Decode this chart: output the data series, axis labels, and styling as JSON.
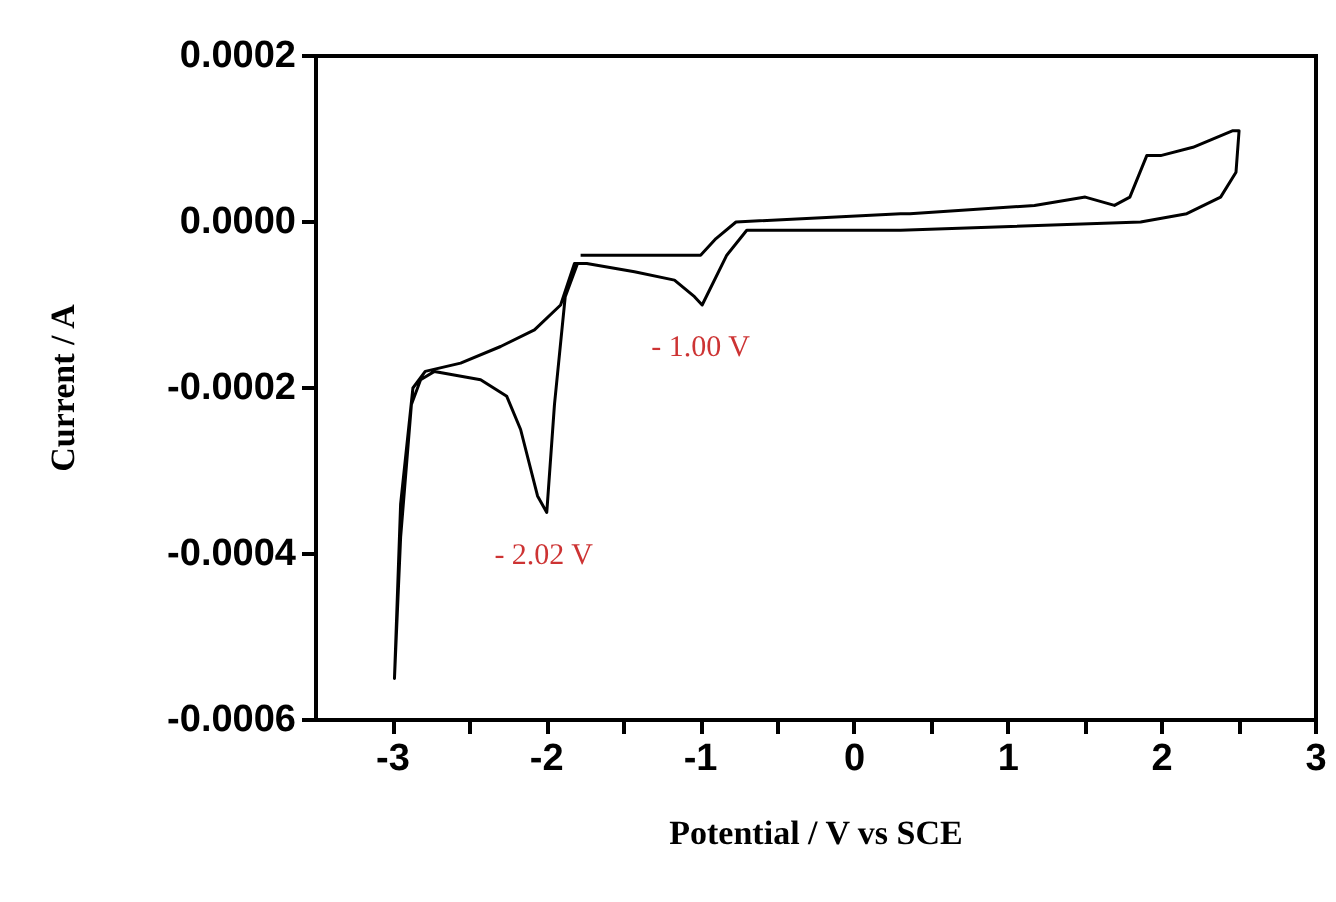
{
  "chart_data": {
    "type": "line",
    "xlabel": "Potential / V vs SCE",
    "ylabel": "Current / A",
    "series": [
      {
        "color": "#000000",
        "x": [
          -1.78,
          -1.0,
          -0.9,
          -0.77,
          0.3,
          0.36,
          1.17,
          1.5,
          1.69,
          1.79,
          1.9,
          1.99,
          2.2,
          2.46,
          2.5,
          2.48,
          2.38,
          2.16,
          1.86,
          0.3,
          -0.35,
          -0.7,
          -0.83,
          -0.99,
          -1.04,
          -1.17,
          -1.43,
          -1.74,
          -1.8,
          -1.88,
          -1.95,
          -2.0,
          -2.06,
          -2.17,
          -2.26,
          -2.43,
          -2.73,
          -2.82,
          -2.88,
          -2.95,
          -2.99,
          -2.95,
          -2.87,
          -2.79,
          -2.56,
          -2.3,
          -2.08,
          -1.91,
          -1.82,
          -1.78
        ],
        "values": [
          -4e-05,
          -4e-05,
          -2e-05,
          0,
          1e-05,
          1e-05,
          2e-05,
          3e-05,
          2e-05,
          3e-05,
          8e-05,
          8e-05,
          9e-05,
          0.00011,
          0.00011,
          6e-05,
          3e-05,
          1e-05,
          0,
          -1e-05,
          -1e-05,
          -1e-05,
          -4e-05,
          -0.0001,
          -9e-05,
          -7e-05,
          -6e-05,
          -5e-05,
          -5e-05,
          -9e-05,
          -0.00022,
          -0.00035,
          -0.00033,
          -0.00025,
          -0.00021,
          -0.00019,
          -0.00018,
          -0.00019,
          -0.00022,
          -0.00038,
          -0.00055,
          -0.00034,
          -0.0002,
          -0.00018,
          -0.00017,
          -0.00015,
          -0.00013,
          -0.0001,
          -5e-05,
          -5e-05
        ]
      }
    ],
    "xlim": [
      -3.5,
      3
    ],
    "xticks": [
      -3,
      {
        "value": -2.5,
        "label": null
      },
      -2,
      {
        "value": -1.5,
        "label": null
      },
      -1,
      {
        "value": -0.5,
        "label": null
      },
      0,
      {
        "value": 0.5,
        "label": null
      },
      1,
      {
        "value": 1.5,
        "label": null
      },
      2,
      {
        "value": 2.5,
        "label": null
      },
      3
    ],
    "ylim": [
      -0.0006,
      0.0002
    ],
    "yticks": [
      -0.0006,
      -0.0004,
      -0.0002,
      {
        "value": 0,
        "label": "0.0000"
      },
      0.0002
    ],
    "annotations": [
      {
        "text": "- 1.00 V",
        "x": -1.0,
        "y": -0.0001
      },
      {
        "text": "- 2.02 V",
        "x": -2.02,
        "y": -0.00035
      }
    ],
    "grid": false,
    "marker": "none",
    "line_style": "solid"
  }
}
